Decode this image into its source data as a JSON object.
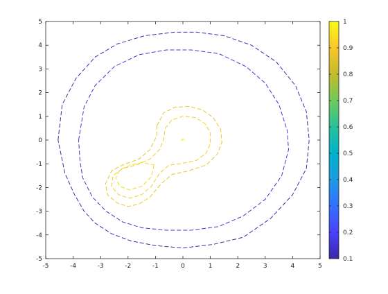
{
  "chart_data": {
    "type": "contour",
    "title": "",
    "xlabel": "",
    "ylabel": "",
    "xlim": [
      -5,
      5
    ],
    "ylim": [
      -5,
      5
    ],
    "xticks": [
      "-5",
      "-4",
      "-3",
      "-2",
      "-1",
      "0",
      "1",
      "2",
      "3",
      "4",
      "5"
    ],
    "yticks": [
      "-5",
      "-4",
      "-3",
      "-2",
      "-1",
      "0",
      "1",
      "2",
      "3",
      "4",
      "5"
    ],
    "grid": false,
    "line_style": "dashed",
    "colorbar": {
      "range": [
        0.1,
        1
      ],
      "ticks": [
        "0.1",
        "0.2",
        "0.3",
        "0.4",
        "0.5",
        "0.6",
        "0.7",
        "0.8",
        "0.9",
        "1"
      ],
      "colormap": [
        "#3e26a8",
        "#4743f8",
        "#3570fe",
        "#1c9ae0",
        "#01b1c8",
        "#27c19b",
        "#6fc95a",
        "#c4bb2b",
        "#f9c62c",
        "#f9fb15"
      ]
    },
    "contours": [
      {
        "level": 0.1,
        "color": "#3a2ba9",
        "points": [
          [
            -4.55,
            0
          ],
          [
            -4.4,
            1.5
          ],
          [
            -3.9,
            2.6
          ],
          [
            -3.2,
            3.5
          ],
          [
            -2.4,
            4.05
          ],
          [
            -1.4,
            4.4
          ],
          [
            -0.3,
            4.55
          ],
          [
            0.5,
            4.55
          ],
          [
            1.5,
            4.4
          ],
          [
            2.5,
            4.0
          ],
          [
            3.4,
            3.3
          ],
          [
            4.1,
            2.3
          ],
          [
            4.5,
            1.2
          ],
          [
            4.6,
            0
          ],
          [
            4.5,
            -1.2
          ],
          [
            4.0,
            -2.3
          ],
          [
            3.2,
            -3.3
          ],
          [
            2.2,
            -4.1
          ],
          [
            1.1,
            -4.4
          ],
          [
            0,
            -4.55
          ],
          [
            -1.0,
            -4.45
          ],
          [
            -1.9,
            -4.25
          ],
          [
            -2.6,
            -3.95
          ],
          [
            -3.2,
            -3.5
          ],
          [
            -3.6,
            -3.0
          ],
          [
            -3.95,
            -2.3
          ],
          [
            -4.3,
            -1.4
          ],
          [
            -4.55,
            0
          ]
        ]
      },
      {
        "level": 0.2,
        "color": "#4435d6",
        "points": [
          [
            -3.8,
            0
          ],
          [
            -3.6,
            1.4
          ],
          [
            -3.2,
            2.3
          ],
          [
            -2.5,
            3.1
          ],
          [
            -1.6,
            3.6
          ],
          [
            -0.6,
            3.8
          ],
          [
            0.3,
            3.8
          ],
          [
            1.3,
            3.65
          ],
          [
            2.3,
            3.1
          ],
          [
            3.0,
            2.4
          ],
          [
            3.5,
            1.5
          ],
          [
            3.8,
            0.4
          ],
          [
            3.85,
            -0.4
          ],
          [
            3.6,
            -1.5
          ],
          [
            3.0,
            -2.5
          ],
          [
            2.2,
            -3.2
          ],
          [
            1.3,
            -3.65
          ],
          [
            0.3,
            -3.8
          ],
          [
            -0.6,
            -3.8
          ],
          [
            -1.5,
            -3.7
          ],
          [
            -2.2,
            -3.45
          ],
          [
            -2.8,
            -3.0
          ],
          [
            -3.3,
            -2.4
          ],
          [
            -3.65,
            -1.6
          ],
          [
            -3.75,
            -0.9
          ],
          [
            -3.8,
            0
          ]
        ]
      },
      {
        "level": 0.9,
        "color": "#e6c72a",
        "points": [
          [
            -0.95,
            0.6
          ],
          [
            -0.7,
            1.15
          ],
          [
            -0.3,
            1.38
          ],
          [
            0.2,
            1.42
          ],
          [
            0.7,
            1.28
          ],
          [
            1.1,
            0.95
          ],
          [
            1.38,
            0.45
          ],
          [
            1.42,
            -0.1
          ],
          [
            1.25,
            -0.6
          ],
          [
            0.85,
            -1.05
          ],
          [
            0.2,
            -1.3
          ],
          [
            -0.4,
            -1.45
          ],
          [
            -0.8,
            -1.85
          ],
          [
            -1.2,
            -2.4
          ],
          [
            -1.6,
            -2.7
          ],
          [
            -2.0,
            -2.8
          ],
          [
            -2.4,
            -2.65
          ],
          [
            -2.75,
            -2.3
          ],
          [
            -2.82,
            -1.85
          ],
          [
            -2.6,
            -1.3
          ],
          [
            -2.2,
            -1.05
          ],
          [
            -1.6,
            -0.8
          ],
          [
            -1.2,
            -0.4
          ],
          [
            -0.95,
            0.2
          ],
          [
            -0.95,
            0.6
          ]
        ]
      },
      {
        "level": 0.95,
        "color": "#f0cf28",
        "points": [
          [
            -0.65,
            0.5
          ],
          [
            -0.4,
            0.85
          ],
          [
            0,
            1.0
          ],
          [
            0.45,
            0.95
          ],
          [
            0.8,
            0.7
          ],
          [
            1.0,
            0.3
          ],
          [
            1.0,
            -0.15
          ],
          [
            0.85,
            -0.55
          ],
          [
            0.5,
            -0.85
          ],
          [
            0,
            -0.98
          ],
          [
            -0.5,
            -1.05
          ],
          [
            -0.85,
            -1.4
          ],
          [
            -1.15,
            -1.95
          ],
          [
            -1.5,
            -2.3
          ],
          [
            -1.95,
            -2.45
          ],
          [
            -2.35,
            -2.3
          ],
          [
            -2.6,
            -1.95
          ],
          [
            -2.55,
            -1.5
          ],
          [
            -2.2,
            -1.2
          ],
          [
            -1.7,
            -1.05
          ],
          [
            -1.2,
            -0.8
          ],
          [
            -0.85,
            -0.4
          ],
          [
            -0.7,
            0.05
          ],
          [
            -0.65,
            0.5
          ]
        ]
      },
      {
        "level": 0.98,
        "color": "#f5d826",
        "points": [
          [
            -1.05,
            -1.05
          ],
          [
            -1.15,
            -1.55
          ],
          [
            -1.5,
            -1.95
          ],
          [
            -1.95,
            -2.1
          ],
          [
            -2.3,
            -1.95
          ],
          [
            -2.45,
            -1.6
          ],
          [
            -2.3,
            -1.25
          ],
          [
            -1.9,
            -1.05
          ],
          [
            -1.5,
            -0.95
          ],
          [
            -1.05,
            -1.05
          ]
        ]
      },
      {
        "level": 1.0,
        "color": "#f9e61f",
        "points": [
          [
            -0.05,
            0
          ],
          [
            0,
            0.05
          ],
          [
            0.05,
            0
          ],
          [
            0,
            -0.05
          ],
          [
            -0.05,
            0
          ]
        ]
      }
    ]
  }
}
